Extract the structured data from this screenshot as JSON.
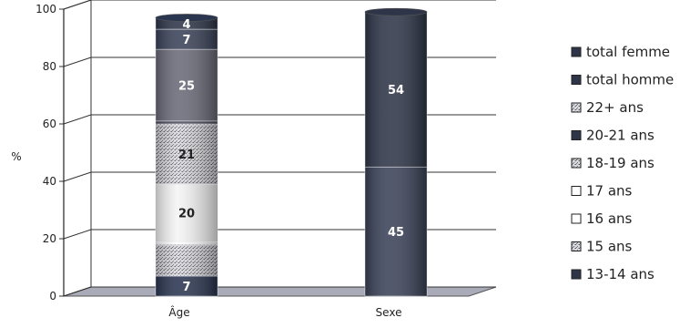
{
  "chart_data": {
    "type": "bar",
    "stacked": true,
    "three_d": true,
    "categories": [
      "Âge",
      "Sexe"
    ],
    "ylabel": "%",
    "ylim": [
      0,
      100
    ],
    "yticks": [
      0,
      20,
      40,
      60,
      80,
      100
    ],
    "grid": true,
    "legend_position": "right",
    "series": [
      {
        "name": "13-14 ans",
        "values": [
          7,
          null
        ],
        "label": "7",
        "color": "#2a3550"
      },
      {
        "name": "15 ans",
        "values": [
          11,
          null
        ],
        "label": "",
        "color": "#b8b8c4",
        "pattern": "speckle"
      },
      {
        "name": "16 ans",
        "values": [
          1,
          null
        ],
        "label": "",
        "color": "#ffffff"
      },
      {
        "name": "17 ans",
        "values": [
          20,
          null
        ],
        "label": "20",
        "color": "#f4f4f4"
      },
      {
        "name": "18-19 ans",
        "values": [
          21,
          null
        ],
        "label": "21",
        "color": "#c4c4cc",
        "pattern": "speckle"
      },
      {
        "name": "20-21 ans",
        "values": [
          1,
          null
        ],
        "label": "",
        "color": "#4a4a5a"
      },
      {
        "name": "22+ ans",
        "values": [
          25,
          null
        ],
        "label": "25",
        "color": "#6a6a78"
      },
      {
        "name": "total homme",
        "values": [
          7,
          45
        ],
        "label": "7",
        "label_sexe": "45",
        "color": "#3a4258"
      },
      {
        "name": "total femme",
        "values": [
          4,
          54
        ],
        "label": "4",
        "label_sexe": "54",
        "color": "#2e3548"
      }
    ]
  },
  "legend": [
    {
      "name": "total femme",
      "icon": "square-filled-dark"
    },
    {
      "name": "total homme",
      "icon": "square-filled-dark"
    },
    {
      "name": "22+ ans",
      "icon": "square-dotted"
    },
    {
      "name": "20-21 ans",
      "icon": "square-filled-dark"
    },
    {
      "name": "18-19 ans",
      "icon": "square-dotted"
    },
    {
      "name": "17 ans",
      "icon": "square-hollow"
    },
    {
      "name": "16 ans",
      "icon": "square-hollow"
    },
    {
      "name": "15 ans",
      "icon": "square-dotted"
    },
    {
      "name": "13-14 ans",
      "icon": "square-filled-dark"
    }
  ]
}
